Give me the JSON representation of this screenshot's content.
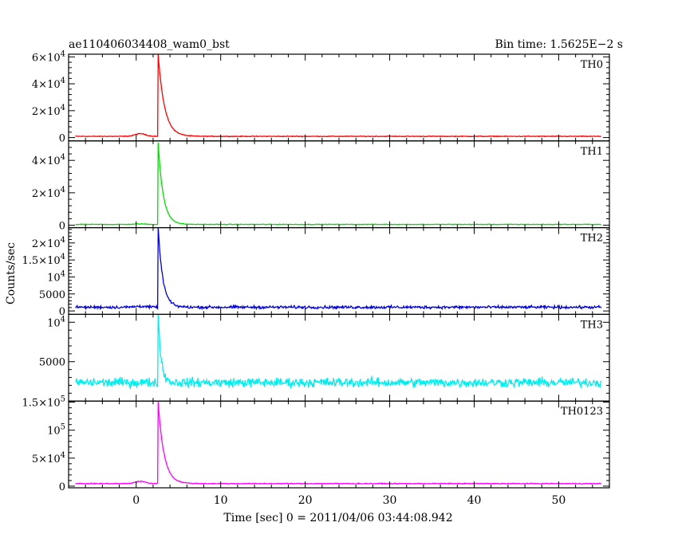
{
  "header": {
    "title": "ae110406034408_wam0_bst",
    "bin_time": "Bin time: 1.5625E−2 s"
  },
  "axes": {
    "xlabel": "Time [sec] 0 = 2011/04/06 03:44:08.942",
    "ylabel": "Counts/sec"
  },
  "chart_data": {
    "type": "line",
    "x_range": [
      -8,
      56
    ],
    "x_ticks": [
      0,
      10,
      20,
      30,
      40,
      50
    ],
    "x_tick_labels": [
      "0",
      "10",
      "20",
      "30",
      "40",
      "50"
    ],
    "burst_peak_time": 2.6,
    "panels": [
      {
        "name": "TH0",
        "color": "#ff0000",
        "ylim": [
          -2500,
          62000
        ],
        "y_ticks": [
          0,
          20000,
          40000,
          60000
        ],
        "y_tick_labels": [
          "0",
          "2×10^4",
          "4×10^4",
          "6×10^4"
        ],
        "baseline": 900,
        "noise": 300,
        "peak": 62000,
        "precursor": {
          "time": 0.5,
          "amplitude": 2000,
          "width": 0.9
        },
        "decay": 0.75
      },
      {
        "name": "TH1",
        "color": "#00dd00",
        "ylim": [
          -1500,
          52000
        ],
        "y_ticks": [
          0,
          20000,
          40000
        ],
        "y_tick_labels": [
          "0",
          "2×10^4",
          "4×10^4"
        ],
        "baseline": 500,
        "noise": 220,
        "peak": 51000,
        "precursor": {
          "time": 0.5,
          "amplitude": 300,
          "width": 0.9
        },
        "decay": 0.6
      },
      {
        "name": "TH2",
        "color": "#0000dd",
        "ylim": [
          -1000,
          24500
        ],
        "y_ticks": [
          0,
          5000,
          10000,
          15000,
          20000
        ],
        "y_tick_labels": [
          "0",
          "5000",
          "10^4",
          "1.5×10^4",
          "2×10^4"
        ],
        "baseline": 1100,
        "noise": 450,
        "peak": 24500,
        "precursor": {
          "time": 0.5,
          "amplitude": 300,
          "width": 0.9
        },
        "decay": 0.55
      },
      {
        "name": "TH3",
        "color": "#00eeee",
        "ylim": [
          0,
          11000
        ],
        "y_ticks": [
          0,
          5000,
          10000
        ],
        "y_tick_labels": [
          "",
          "5000",
          "10^4"
        ],
        "baseline": 2350,
        "noise": 650,
        "peak": 11000,
        "precursor": {
          "time": 0.5,
          "amplitude": 0,
          "width": 0.9
        },
        "decay": 0.35
      },
      {
        "name": "TH0123",
        "color": "#ff00ff",
        "ylim": [
          -3000,
          152000
        ],
        "y_ticks": [
          0,
          50000,
          100000,
          150000
        ],
        "y_tick_labels": [
          "0",
          "5×10^4",
          "10^5",
          "1.5×10^5"
        ],
        "baseline": 4500,
        "noise": 900,
        "peak": 150000,
        "precursor": {
          "time": 0.5,
          "amplitude": 4000,
          "width": 0.9
        },
        "decay": 0.7
      }
    ]
  }
}
